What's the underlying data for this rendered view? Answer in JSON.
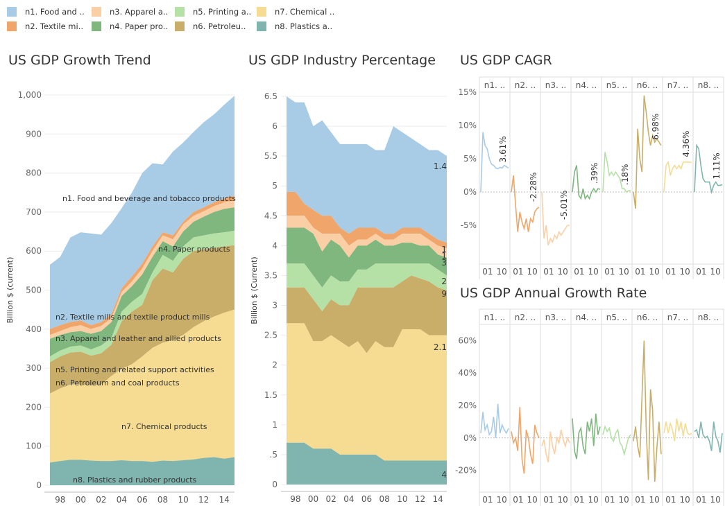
{
  "legend": [
    {
      "label": "n1.  Food and ..",
      "color": "#a8cbe6"
    },
    {
      "label": "n2. Textile mi..",
      "color": "#f0a66a"
    },
    {
      "label": "n3.  Apparel a..",
      "color": "#fbcfa5"
    },
    {
      "label": "n4. Paper pro..",
      "color": "#7fb77e"
    },
    {
      "label": "n5. Printing a..",
      "color": "#b5e0a6"
    },
    {
      "label": "n6. Petroleu..",
      "color": "#c9ae6a"
    },
    {
      "label": "n7.  Chemical ..",
      "color": "#f5dc92"
    },
    {
      "label": "n8. Plastics a..",
      "color": "#7fb5ae"
    }
  ],
  "chart_data": [
    {
      "type": "area",
      "title": "US GDP Growth Trend",
      "ylabel": "Billion $ (current)",
      "ylim": [
        0,
        1000
      ],
      "yticks": [
        0,
        100,
        200,
        300,
        400,
        500,
        600,
        700,
        800,
        900,
        1000
      ],
      "ytick_labels": [
        "0",
        "100",
        "200",
        "300",
        "400",
        "500",
        "600",
        "700",
        "800",
        "900",
        "1,000"
      ],
      "xticks": [
        "98",
        "00",
        "02",
        "04",
        "06",
        "08",
        "10",
        "12",
        "14"
      ],
      "series_labels": [
        "n1.  Food and beverage and tobacco products",
        "n2. Textile mills and textile product mills",
        "n3.  Apparel and leather and allied products",
        "n4. Paper products",
        "n5. Printing and related support activities",
        "n6. Petroleum and coal products",
        "n7.  Chemical products",
        "n8. Plastics and rubber products"
      ],
      "x": [
        1997,
        1998,
        1999,
        2000,
        2001,
        2002,
        2003,
        2004,
        2005,
        2006,
        2007,
        2008,
        2009,
        2010,
        2011,
        2012,
        2013,
        2014,
        2015
      ],
      "cumulative": [
        [
          58,
          62,
          65,
          65,
          63,
          62,
          62,
          64,
          62,
          62,
          60,
          63,
          62,
          64,
          66,
          70,
          72,
          68,
          72
        ],
        [
          235,
          248,
          258,
          258,
          255,
          258,
          280,
          298,
          310,
          330,
          352,
          365,
          372,
          385,
          405,
          420,
          432,
          442,
          450
        ],
        [
          315,
          330,
          340,
          342,
          332,
          338,
          360,
          420,
          445,
          462,
          525,
          555,
          545,
          580,
          600,
          605,
          608,
          612,
          615
        ],
        [
          330,
          345,
          355,
          358,
          348,
          358,
          378,
          445,
          470,
          490,
          545,
          590,
          575,
          612,
          635,
          640,
          645,
          648,
          652
        ],
        [
          375,
          385,
          392,
          395,
          388,
          395,
          418,
          485,
          510,
          540,
          585,
          625,
          612,
          650,
          675,
          688,
          700,
          708,
          712
        ],
        [
          385,
          395,
          405,
          410,
          400,
          408,
          428,
          495,
          522,
          555,
          600,
          640,
          630,
          668,
          690,
          702,
          715,
          725,
          730
        ],
        [
          400,
          410,
          418,
          422,
          410,
          418,
          438,
          505,
          535,
          568,
          612,
          648,
          640,
          675,
          700,
          712,
          725,
          735,
          742
        ],
        [
          565,
          585,
          635,
          648,
          645,
          642,
          672,
          710,
          750,
          800,
          825,
          822,
          855,
          878,
          905,
          930,
          950,
          975,
          998
        ]
      ],
      "annotations": [
        "n1.  Food and beverage and tobacco products",
        "n4. Paper products",
        "n2. Textile mills and textile product mills",
        "n3.  Apparel and leather and allied products",
        "n5. Printing and related support activities",
        "n6. Petroleum and coal products",
        "n7.  Chemical products",
        "n8. Plastics and rubber products"
      ]
    },
    {
      "type": "area",
      "title": "US GDP Industry Percentage",
      "ylabel": "Billion $ (Current)",
      "ylim": [
        0,
        6.5
      ],
      "yticks": [
        0,
        0.5,
        1,
        1.5,
        2,
        2.5,
        3,
        3.5,
        4,
        4.5,
        5,
        5.5,
        6,
        6.5
      ],
      "ytick_labels": [
        "0",
        ".5",
        "1",
        "1.5",
        "2",
        "2.5",
        "3",
        "3.5",
        "4",
        "4.5",
        "5",
        "5.5",
        "6",
        "6.5"
      ],
      "xticks": [
        "98",
        "00",
        "02",
        "04",
        "06",
        "08",
        "10",
        "12",
        "14"
      ],
      "x": [
        1997,
        1998,
        1999,
        2000,
        2001,
        2002,
        2003,
        2004,
        2005,
        2006,
        2007,
        2008,
        2009,
        2010,
        2011,
        2012,
        2013,
        2014,
        2015
      ],
      "cumulative": [
        [
          0.7,
          0.7,
          0.7,
          0.6,
          0.6,
          0.6,
          0.5,
          0.5,
          0.5,
          0.5,
          0.5,
          0.4,
          0.4,
          0.4,
          0.4,
          0.4,
          0.4,
          0.4,
          0.4
        ],
        [
          2.7,
          2.7,
          2.7,
          2.4,
          2.4,
          2.5,
          2.4,
          2.3,
          2.4,
          2.2,
          2.4,
          2.3,
          2.3,
          2.6,
          2.6,
          2.6,
          2.5,
          2.5,
          2.5
        ],
        [
          3.3,
          3.3,
          3.3,
          3.1,
          2.9,
          3.1,
          3.0,
          3.0,
          3.3,
          3.3,
          3.3,
          3.3,
          3.3,
          3.4,
          3.5,
          3.45,
          3.4,
          3.3,
          3.25
        ],
        [
          3.7,
          3.7,
          3.7,
          3.5,
          3.3,
          3.5,
          3.4,
          3.4,
          3.6,
          3.6,
          3.7,
          3.7,
          3.7,
          3.7,
          3.7,
          3.7,
          3.7,
          3.6,
          3.5
        ],
        [
          4.3,
          4.3,
          4.3,
          4.2,
          3.9,
          4.1,
          4.0,
          3.8,
          4.0,
          4.0,
          4.1,
          4.0,
          4.0,
          4.05,
          4.05,
          4.0,
          4.0,
          3.85,
          3.8
        ],
        [
          4.5,
          4.5,
          4.5,
          4.3,
          4.2,
          4.2,
          4.2,
          4.0,
          4.1,
          4.1,
          4.2,
          4.1,
          4.1,
          4.2,
          4.2,
          4.2,
          4.1,
          4.0,
          3.95
        ],
        [
          4.9,
          4.9,
          4.7,
          4.6,
          4.5,
          4.5,
          4.3,
          4.2,
          4.3,
          4.3,
          4.3,
          4.2,
          4.2,
          4.3,
          4.3,
          4.3,
          4.2,
          4.1,
          4.05
        ],
        [
          6.5,
          6.4,
          6.4,
          6.0,
          6.1,
          5.9,
          5.7,
          5.7,
          5.7,
          5.7,
          5.6,
          5.6,
          6.0,
          5.9,
          5.8,
          5.7,
          5.6,
          5.6,
          5.5
        ]
      ],
      "end_labels": [
        "1.4",
        "1",
        "1",
        "3",
        "2",
        "9",
        "2.1",
        "4"
      ]
    },
    {
      "type": "line",
      "title": "US GDP CAGR",
      "ylim": [
        -10,
        15
      ],
      "yticks": [
        -5,
        0,
        5,
        10,
        15
      ],
      "ytick_labels": [
        "-5%",
        "0%",
        "5%",
        "10%",
        "15%"
      ],
      "panel_headers": [
        "n1. ..",
        "n2. ..",
        "n3. ..",
        "n4. ..",
        "n5. ..",
        "n6. ..",
        "n7. ..",
        "n8. .."
      ],
      "xticks": [
        "01",
        "10"
      ],
      "series": [
        {
          "values": [
            0,
            9,
            7,
            6.5,
            5,
            4.2,
            4,
            3.6,
            3.5,
            3.7,
            3.6,
            4,
            3.8,
            3.6
          ],
          "end_label": "3.61%"
        },
        {
          "values": [
            0,
            2.5,
            -2,
            -6,
            -3,
            -4.5,
            -5.5,
            -4,
            -6,
            -4,
            -4.5,
            -3,
            -2.5,
            -2.3
          ],
          "end_label": "-2.28%"
        },
        {
          "values": [
            0,
            -7,
            -5,
            -8,
            -7,
            -7.5,
            -6.5,
            -7,
            -6,
            -6.5,
            -6,
            -5.5,
            -5,
            -5
          ],
          "end_label": "-5.01%"
        },
        {
          "values": [
            0,
            3,
            4,
            -0.5,
            -1,
            0.5,
            -1,
            -0.5,
            -1,
            0,
            0.5,
            0,
            0.5,
            0.4
          ],
          "end_label": ".39%"
        },
        {
          "values": [
            0,
            6,
            4.5,
            2.5,
            3,
            2.5,
            3,
            2.5,
            2,
            0.5,
            0.5,
            0,
            0.2,
            0.2
          ],
          "end_label": ".18%"
        },
        {
          "values": [
            0,
            -2.5,
            9.5,
            5,
            3,
            14.5,
            12,
            9,
            7,
            8.5,
            7.5,
            8,
            7.5,
            7
          ],
          "end_label": "6.98%"
        },
        {
          "values": [
            0,
            4,
            4.5,
            2.5,
            3.5,
            4,
            3.5,
            4,
            3.5,
            4.5,
            4.5,
            4.5,
            4.5,
            4.4
          ],
          "end_label": "4.36%"
        },
        {
          "values": [
            0,
            7,
            6.5,
            4,
            2,
            1.5,
            1.5,
            1.5,
            0,
            1,
            1.5,
            1,
            1,
            1.1
          ],
          "end_label": "1.11%"
        }
      ],
      "colors": [
        "#a8cbe6",
        "#f0a66a",
        "#fbcfa5",
        "#7fb77e",
        "#b5e0a6",
        "#c9ae6a",
        "#f5dc92",
        "#7fb5ae"
      ]
    },
    {
      "type": "line",
      "title": "US GDP Annual Growth Rate",
      "ylim": [
        -30,
        70
      ],
      "yticks": [
        -20,
        0,
        20,
        40,
        60
      ],
      "ytick_labels": [
        "-20%",
        "0%",
        "20%",
        "40%",
        "60%"
      ],
      "panel_headers": [
        "n1. ..",
        "n2. ..",
        "n3. ..",
        "n4. ..",
        "n5. ..",
        "n6. ..",
        "n7. ..",
        "n8. .."
      ],
      "xticks": [
        "01",
        "10"
      ],
      "series": [
        {
          "values": [
            3,
            16,
            5,
            8,
            2,
            4,
            13,
            0,
            21,
            3,
            8,
            5,
            3,
            6
          ]
        },
        {
          "values": [
            4,
            -3,
            0,
            -8,
            19,
            -13,
            -22,
            5,
            0,
            -10,
            -16,
            8,
            3,
            0
          ]
        },
        {
          "values": [
            -5,
            -1,
            -10,
            -15,
            4,
            -5,
            -10,
            0,
            -3,
            5,
            -1,
            -5,
            0,
            -3
          ]
        },
        {
          "values": [
            12,
            -8,
            -13,
            3,
            6,
            -5,
            -10,
            10,
            4,
            12,
            -5,
            15,
            2,
            7
          ]
        },
        {
          "values": [
            2,
            7,
            4,
            6,
            0,
            -2,
            3,
            5,
            -3,
            -5,
            -10,
            -5,
            0,
            2
          ]
        },
        {
          "values": [
            -2,
            7,
            -5,
            -12,
            25,
            60,
            5,
            -26,
            30,
            17,
            -27,
            -6,
            10,
            -10
          ]
        },
        {
          "values": [
            3,
            10,
            3,
            9,
            5,
            -2,
            12,
            4,
            10,
            1,
            9,
            3,
            2,
            3
          ]
        },
        {
          "values": [
            4,
            5,
            0,
            10,
            2,
            0,
            1,
            -2,
            -8,
            10,
            1,
            -2,
            -9,
            3
          ]
        }
      ],
      "colors": [
        "#a8cbe6",
        "#f0a66a",
        "#fbcfa5",
        "#7fb77e",
        "#b5e0a6",
        "#c9ae6a",
        "#f5dc92",
        "#7fb5ae"
      ]
    }
  ]
}
